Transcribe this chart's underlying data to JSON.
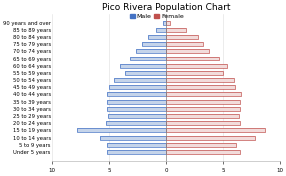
{
  "title": "Pico Rivera Population Chart",
  "age_groups": [
    "90 years and over",
    "85 to 89 years",
    "80 to 84 years",
    "75 to 79 years",
    "70 to 74 years",
    "65 to 69 years",
    "60 to 64 years",
    "55 to 59 years",
    "50 to 54 years",
    "45 to 49 years",
    "40 to 44 years",
    "35 to 39 years",
    "30 to 34 years",
    "25 to 29 years",
    "20 to 24 years",
    "15 to 19 years",
    "10 to 14 years",
    "5 to 9 years",
    "Under 5 years"
  ],
  "male": [
    0.3,
    0.9,
    1.6,
    2.1,
    2.6,
    3.2,
    4.0,
    3.6,
    4.6,
    5.0,
    5.2,
    5.2,
    5.2,
    5.1,
    5.3,
    7.8,
    5.8,
    5.2,
    5.2
  ],
  "female": [
    0.4,
    1.8,
    2.8,
    3.3,
    3.8,
    4.7,
    5.4,
    5.0,
    6.0,
    6.1,
    6.6,
    6.5,
    6.5,
    6.4,
    6.5,
    8.7,
    7.8,
    6.2,
    6.5
  ],
  "male_color": "#4472C4",
  "female_color": "#C0504D",
  "female_fill_color": "#F2DCDB",
  "male_fill_color": "#C5D4EA",
  "xlim": [
    -10,
    10
  ],
  "xticks": [
    -10,
    -5,
    0,
    5,
    10
  ],
  "background_color": "#FFFFFF",
  "title_fontsize": 6.5,
  "label_fontsize": 3.8,
  "tick_fontsize": 4.0,
  "legend_fontsize": 4.5
}
